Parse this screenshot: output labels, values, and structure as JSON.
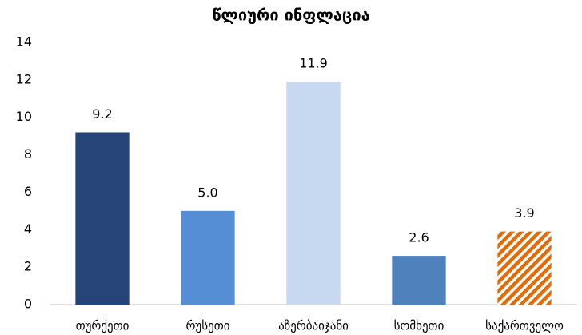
{
  "chart_data": {
    "type": "bar",
    "title": "წლიური ინფლაცია",
    "categories": [
      "თურქეთი",
      "რუსეთი",
      "აზერბაიჯანი",
      "სომხეთი",
      "საქართველო"
    ],
    "values": [
      9.2,
      5.0,
      11.9,
      2.6,
      3.9
    ],
    "value_labels": [
      "9.2",
      "5.0",
      "11.9",
      "2.6",
      "3.9"
    ],
    "colors": [
      "#264478",
      "#558ed5",
      "#c6d9f1",
      "#4f81bd",
      "#e36c09"
    ],
    "hatched": [
      false,
      false,
      false,
      false,
      true
    ],
    "ylim": [
      0,
      14
    ],
    "yticks": [
      0,
      2,
      4,
      6,
      8,
      10,
      12,
      14
    ],
    "grid": false
  }
}
